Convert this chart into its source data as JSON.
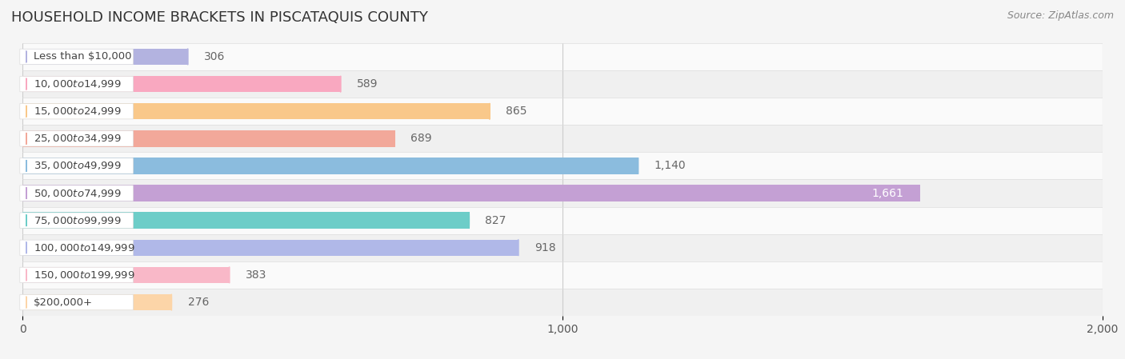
{
  "title": "HOUSEHOLD INCOME BRACKETS IN PISCATAQUIS COUNTY",
  "source": "Source: ZipAtlas.com",
  "categories": [
    "Less than $10,000",
    "$10,000 to $14,999",
    "$15,000 to $24,999",
    "$25,000 to $34,999",
    "$35,000 to $49,999",
    "$50,000 to $74,999",
    "$75,000 to $99,999",
    "$100,000 to $149,999",
    "$150,000 to $199,999",
    "$200,000+"
  ],
  "values": [
    306,
    589,
    865,
    689,
    1140,
    1661,
    827,
    918,
    383,
    276
  ],
  "bar_colors": [
    "#b3b3e0",
    "#f9a8c0",
    "#f9c88a",
    "#f2a89a",
    "#8bbcde",
    "#c4a0d4",
    "#6dcdc8",
    "#b0b8e8",
    "#f9b8c8",
    "#fcd5a8"
  ],
  "xlim": [
    0,
    2000
  ],
  "xticks": [
    0,
    1000,
    2000
  ],
  "bar_height": 0.6,
  "background_color": "#f5f5f5",
  "value_label_color": "#666666",
  "value_label_inside_color": "#ffffff",
  "title_fontsize": 13,
  "source_fontsize": 9,
  "label_fontsize": 10,
  "tick_fontsize": 10,
  "row_odd_color": "#f0f0f0",
  "row_even_color": "#fafafa"
}
